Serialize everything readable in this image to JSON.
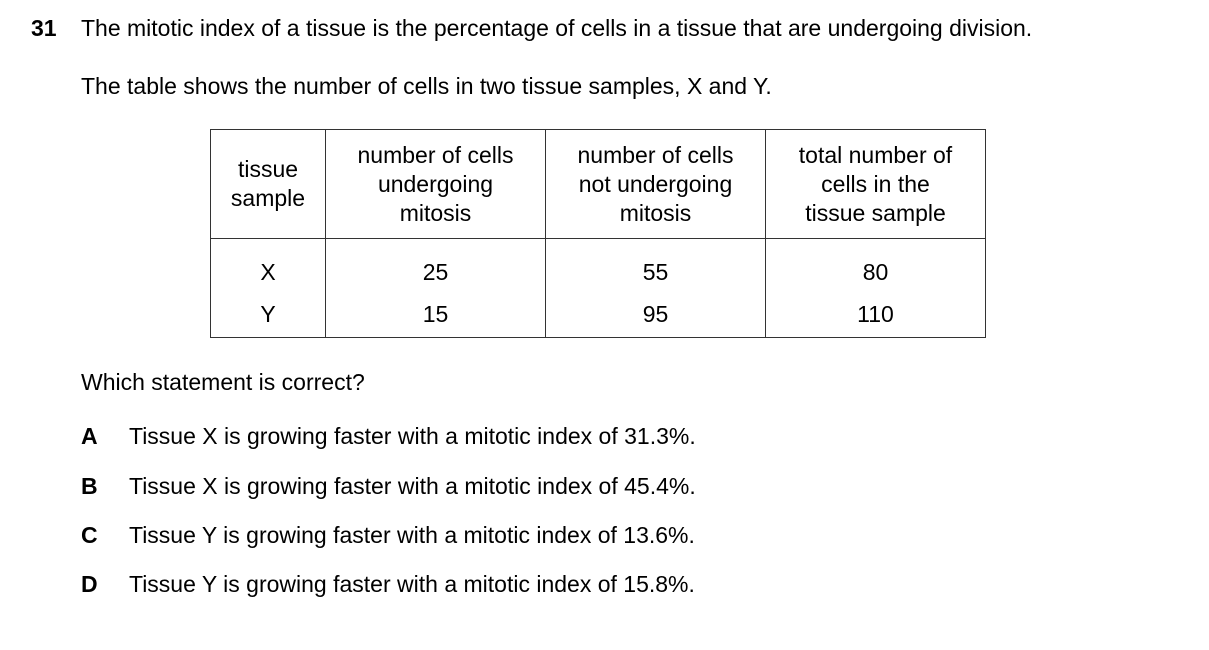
{
  "question": {
    "number": "31",
    "stem": "The mitotic index of a tissue is the percentage of cells in a tissue that are undergoing division.",
    "intro": "The table shows the number of cells in two tissue samples, X and Y.",
    "prompt": "Which statement is correct?"
  },
  "table": {
    "headers": [
      [
        "tissue",
        "sample"
      ],
      [
        "number of cells",
        "undergoing",
        "mitosis"
      ],
      [
        "number of cells",
        "not undergoing",
        "mitosis"
      ],
      [
        "total number of",
        "cells in the",
        "tissue sample"
      ]
    ],
    "rows": [
      [
        "X",
        "25",
        "55",
        "80"
      ],
      [
        "Y",
        "15",
        "95",
        "110"
      ]
    ]
  },
  "options": [
    {
      "letter": "A",
      "text": "Tissue X is growing faster with a mitotic index of 31.3%."
    },
    {
      "letter": "B",
      "text": "Tissue X is growing faster with a mitotic index of 45.4%."
    },
    {
      "letter": "C",
      "text": "Tissue Y is growing faster with a mitotic index of 13.6%."
    },
    {
      "letter": "D",
      "text": "Tissue Y is growing faster with a mitotic index of 15.8%."
    }
  ]
}
